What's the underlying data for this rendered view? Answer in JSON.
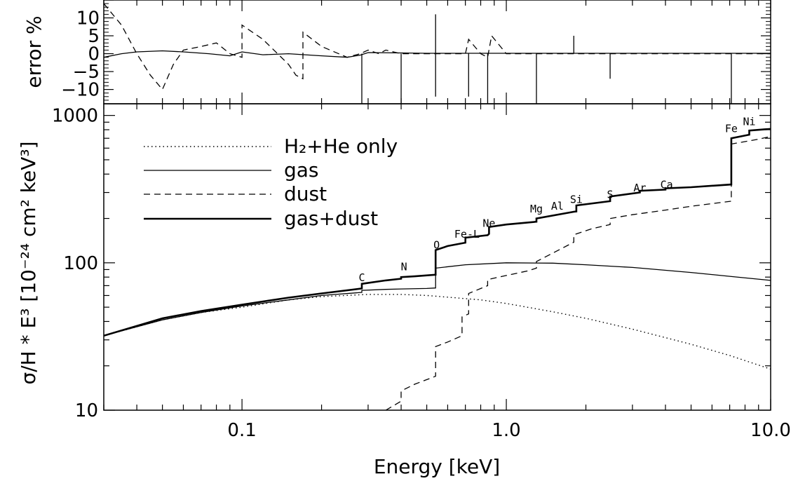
{
  "chart_data": [
    {
      "type": "line",
      "panel": "top",
      "ylabel": "error %",
      "xscale": "log",
      "xlim": [
        0.03,
        10.0
      ],
      "ylim": [
        -14,
        15
      ],
      "yticks": [
        -10,
        -5,
        0,
        5,
        10
      ],
      "ytick_labels": [
        "−10",
        "−5",
        "0",
        "5",
        "10"
      ],
      "series": [
        {
          "style": "solid",
          "x": [
            0.03,
            0.035,
            0.04,
            0.05,
            0.06,
            0.075,
            0.09,
            0.1,
            0.12,
            0.15,
            0.2,
            0.25,
            0.28,
            0.3,
            0.4,
            0.5,
            0.6,
            0.8,
            1.0,
            1.5,
            2.0,
            3.0,
            5.0,
            10.0
          ],
          "y": [
            -1.0,
            0.0,
            0.5,
            0.8,
            0.5,
            0.0,
            -0.6,
            0.5,
            -0.3,
            0.0,
            -0.6,
            -1.0,
            -0.4,
            0.3,
            0.2,
            0.1,
            0.1,
            0.1,
            0.1,
            0.1,
            0.1,
            0.1,
            0.1,
            0.1
          ]
        },
        {
          "style": "dashed",
          "x": [
            0.03,
            0.035,
            0.04,
            0.045,
            0.05,
            0.055,
            0.06,
            0.07,
            0.08,
            0.09,
            0.1,
            0.1,
            0.12,
            0.15,
            0.16,
            0.17,
            0.17,
            0.2,
            0.25,
            0.28,
            0.3,
            0.33,
            0.35,
            0.4,
            0.5,
            0.55,
            0.6,
            0.7,
            0.72,
            0.8,
            0.85,
            0.88,
            1.0,
            1.5,
            2.0,
            3.0,
            5.0,
            7.0,
            10.0
          ],
          "y": [
            14.0,
            8.0,
            0.0,
            -6.0,
            -10.0,
            -3.0,
            1.0,
            2.0,
            3.0,
            0.0,
            -1.0,
            8.0,
            4.0,
            -3.0,
            -6.0,
            -7.0,
            6.0,
            2.0,
            -1.0,
            0.0,
            1.0,
            0.0,
            1.0,
            0.0,
            0.0,
            0.0,
            0.0,
            0.0,
            4.0,
            0.0,
            -1.0,
            5.0,
            0.0,
            0.0,
            0.0,
            0.0,
            0.0,
            0.0,
            0.0
          ]
        }
      ],
      "spikes": [
        {
          "x": 0.284,
          "y": -14
        },
        {
          "x": 0.4,
          "y": -14
        },
        {
          "x": 0.54,
          "y": 11
        },
        {
          "x": 0.54,
          "y": -12
        },
        {
          "x": 0.72,
          "y": -12
        },
        {
          "x": 0.85,
          "y": -14
        },
        {
          "x": 1.3,
          "y": -14
        },
        {
          "x": 1.8,
          "y": 5
        },
        {
          "x": 2.47,
          "y": -7
        },
        {
          "x": 7.1,
          "y": -14
        }
      ]
    },
    {
      "type": "line",
      "panel": "bottom",
      "xlabel": "Energy [keV]",
      "ylabel": "σ/H * E³ [10⁻²⁴ cm² keV³]",
      "xscale": "log",
      "yscale": "log",
      "xlim": [
        0.03,
        10.0
      ],
      "ylim": [
        10,
        1200
      ],
      "xticks": [
        0.1,
        1.0,
        10.0
      ],
      "xtick_labels": [
        "0.1",
        "1.0",
        "10.0"
      ],
      "yticks": [
        10,
        100,
        1000
      ],
      "ytick_labels": [
        "10",
        "100",
        "1000"
      ],
      "series": [
        {
          "name": "H₂+He only",
          "style": "dotted",
          "x": [
            0.03,
            0.05,
            0.07,
            0.1,
            0.15,
            0.2,
            0.3,
            0.4,
            0.5,
            0.6,
            0.8,
            1.0,
            1.5,
            2.0,
            3.0,
            5.0,
            7.0,
            10.0
          ],
          "y": [
            32,
            41,
            46,
            50,
            56,
            59,
            61,
            61,
            60,
            58.5,
            56,
            53,
            46.5,
            42,
            35.5,
            28,
            23.5,
            19
          ]
        },
        {
          "name": "gas",
          "style": "solid-thin",
          "x": [
            0.03,
            0.05,
            0.07,
            0.1,
            0.15,
            0.2,
            0.284,
            0.284,
            0.35,
            0.4,
            0.5,
            0.54,
            0.54,
            0.7,
            1.0,
            1.5,
            2.0,
            3.0,
            5.0,
            7.0,
            10.0
          ],
          "y": [
            32,
            41,
            46,
            51,
            56,
            60,
            63,
            65,
            66,
            66.5,
            67,
            67.5,
            92,
            97,
            100,
            99.5,
            97,
            93,
            86,
            81,
            76
          ]
        },
        {
          "name": "dust",
          "style": "dashed",
          "x": [
            0.35,
            0.4,
            0.4,
            0.45,
            0.54,
            0.54,
            0.6,
            0.68,
            0.68,
            0.72,
            0.72,
            0.85,
            0.85,
            1.0,
            1.2,
            1.3,
            1.3,
            1.8,
            1.8,
            2.1,
            2.47,
            2.47,
            3.0,
            4.0,
            5.0,
            7.1,
            7.1,
            9.0,
            10.0
          ],
          "y": [
            10,
            11.5,
            13.5,
            15,
            17,
            27,
            29,
            32,
            43,
            45,
            62,
            70,
            77,
            82,
            88,
            92,
            102,
            138,
            155,
            170,
            182,
            200,
            212,
            228,
            242,
            262,
            640,
            690,
            720
          ]
        },
        {
          "name": "gas+dust",
          "style": "solid-thick",
          "x": [
            0.03,
            0.05,
            0.07,
            0.1,
            0.15,
            0.2,
            0.284,
            0.284,
            0.35,
            0.4,
            0.4,
            0.45,
            0.54,
            0.54,
            0.6,
            0.7,
            0.7,
            0.85,
            0.86,
            0.86,
            1.0,
            1.3,
            1.3,
            1.8,
            1.84,
            1.84,
            2.47,
            2.47,
            3.2,
            3.2,
            4.0,
            4.0,
            5.0,
            7.1,
            7.1,
            8.3,
            8.3,
            9.5,
            10.0
          ],
          "y": [
            32,
            42,
            47,
            52,
            58,
            62,
            67,
            72,
            76,
            78,
            80,
            81,
            83,
            122,
            130,
            137,
            148,
            154,
            157,
            175,
            182,
            190,
            200,
            222,
            223,
            245,
            262,
            282,
            300,
            308,
            314,
            320,
            326,
            340,
            700,
            740,
            790,
            805,
            810
          ]
        }
      ],
      "edge_labels": [
        {
          "text": "C",
          "x": 0.284,
          "y": 75
        },
        {
          "text": "N",
          "x": 0.41,
          "y": 89
        },
        {
          "text": "O",
          "x": 0.545,
          "y": 125
        },
        {
          "text": "Fe-L",
          "x": 0.71,
          "y": 148
        },
        {
          "text": "Ne",
          "x": 0.86,
          "y": 175
        },
        {
          "text": "Mg",
          "x": 1.3,
          "y": 220
        },
        {
          "text": "Al",
          "x": 1.56,
          "y": 230
        },
        {
          "text": "Si",
          "x": 1.84,
          "y": 255
        },
        {
          "text": "S",
          "x": 2.47,
          "y": 275
        },
        {
          "text": "Ar",
          "x": 3.2,
          "y": 305
        },
        {
          "text": "Ca",
          "x": 4.04,
          "y": 320
        },
        {
          "text": "Fe",
          "x": 7.1,
          "y": 770
        },
        {
          "text": "Ni",
          "x": 8.3,
          "y": 860
        }
      ],
      "legend": {
        "placement": "top-left",
        "entries": [
          {
            "label": "H₂+He only",
            "style": "dotted"
          },
          {
            "label": "gas",
            "style": "solid-thin"
          },
          {
            "label": "dust",
            "style": "dashed"
          },
          {
            "label": "gas+dust",
            "style": "solid-thick"
          }
        ]
      }
    }
  ]
}
